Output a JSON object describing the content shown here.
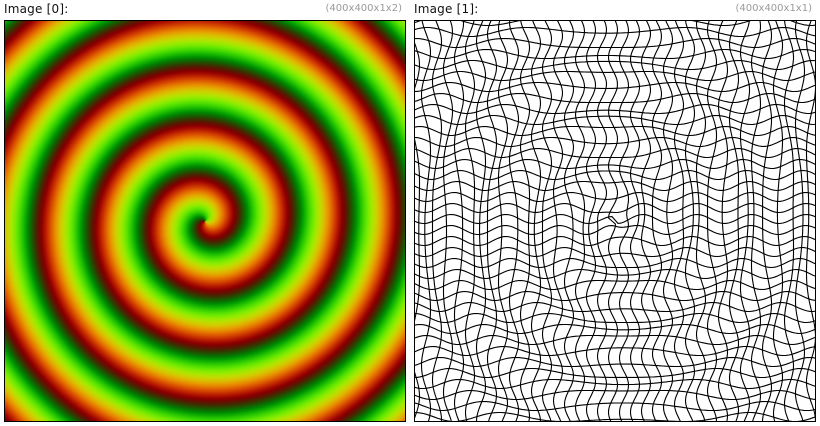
{
  "images": [
    {
      "title": "Image [0]:",
      "dims": "(400x400x1x2)"
    },
    {
      "title": "Image [1]:",
      "dims": "(400x400x1x1)"
    }
  ],
  "colors": {
    "background": "#ffffff",
    "title_text": "#111111",
    "dims_text": "#9a9a9a",
    "frame_border": "#000000"
  }
}
